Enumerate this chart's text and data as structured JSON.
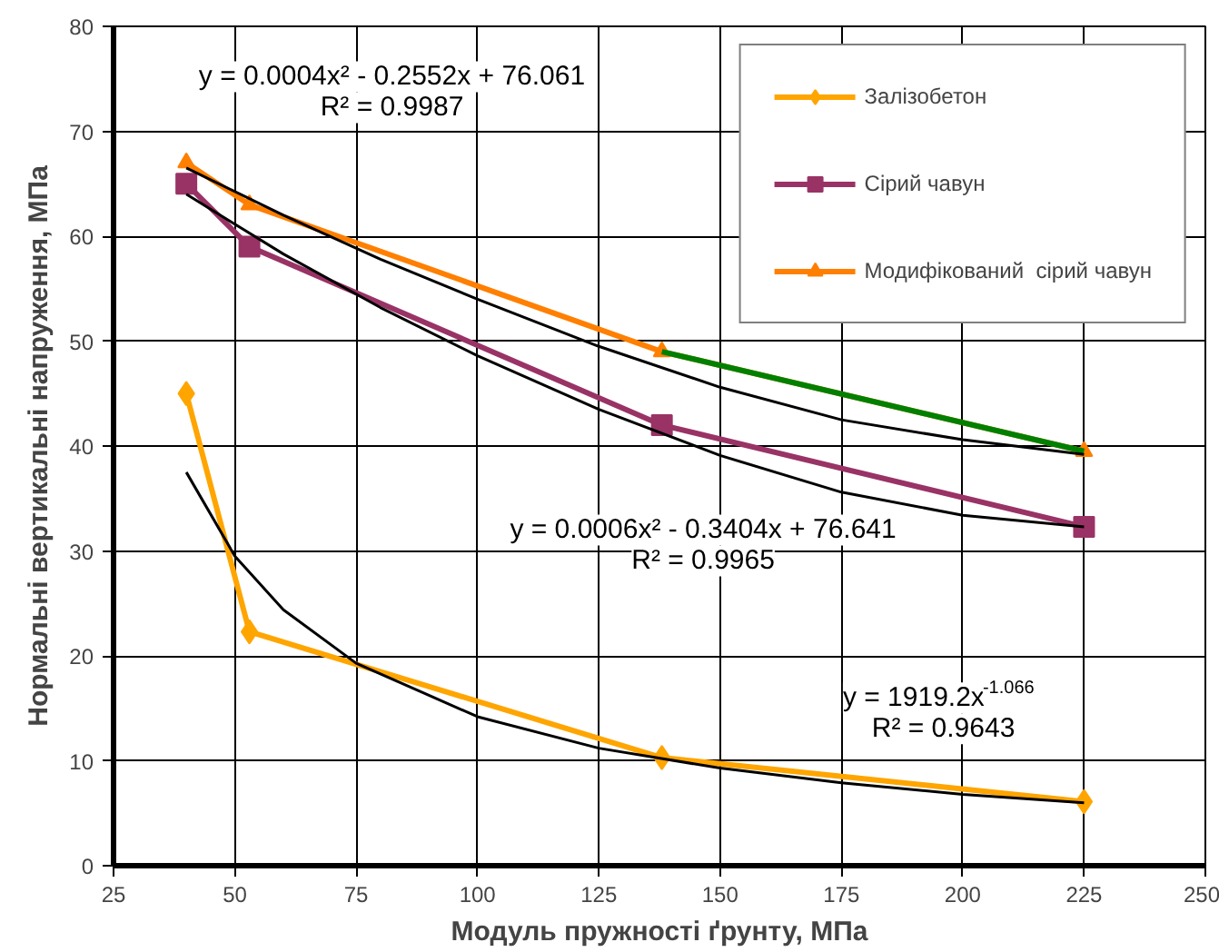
{
  "chart_data": {
    "type": "line",
    "xlabel": "Модуль пружності ґрунту, МПа",
    "ylabel": "Нормальні вертикальні напруження, МПа",
    "x": [
      40,
      53,
      138,
      225
    ],
    "series": [
      {
        "name": "Залізобетон",
        "color": "#ffa500",
        "marker": "diamond",
        "values": [
          45,
          22.3,
          10.3,
          6.1
        ]
      },
      {
        "name": "Сірий чавун",
        "color": "#993366",
        "marker": "square",
        "values": [
          65,
          59,
          42,
          32.3
        ]
      },
      {
        "name": "Модифікований  сірий чавун",
        "color": "#ff7f00",
        "marker": "triangle",
        "values": [
          67,
          63,
          49,
          39.5
        ]
      },
      {
        "type": "line",
        "color": "#008000",
        "marker": "none",
        "x": [
          138,
          225
        ],
        "values": [
          49,
          39.5
        ]
      },
      {
        "type": "line",
        "color": "#000000",
        "marker": "none",
        "x": [
          40,
          60,
          80,
          100,
          125,
          150,
          175,
          200,
          225
        ],
        "values": [
          66.5,
          62,
          57.8,
          54,
          49.5,
          45.6,
          42.5,
          40.6,
          39.2
        ]
      },
      {
        "type": "line",
        "color": "#000000",
        "marker": "none",
        "x": [
          40,
          60,
          80,
          100,
          125,
          150,
          175,
          200,
          225
        ],
        "values": [
          64,
          58.3,
          53.2,
          48.6,
          43.5,
          39.1,
          35.6,
          33.4,
          32.3
        ]
      },
      {
        "type": "line",
        "color": "#000000",
        "marker": "none",
        "x": [
          40,
          50,
          60,
          75,
          100,
          125,
          150,
          175,
          200,
          225
        ],
        "values": [
          37.5,
          29.5,
          24.4,
          19.3,
          14.2,
          11.2,
          9.3,
          7.9,
          6.8,
          6.0
        ]
      }
    ],
    "xlim": [
      25,
      250
    ],
    "xticks": [
      25,
      50,
      75,
      100,
      125,
      150,
      175,
      200,
      225,
      250
    ],
    "ylim": [
      0,
      80
    ],
    "yticks": [
      0,
      10,
      20,
      30,
      40,
      50,
      60,
      70,
      80
    ],
    "grid": true,
    "legend": "top right",
    "line_style": "solid",
    "annotations": [
      "y = 0.0004x² - 0.2552x + 76.061\nR² = 0.9987",
      "y = 0.0006x² - 0.3404x + 76.641\nR² = 0.9965",
      "y = 1919.2x$^{-1.066}$\nR² = 0.9643"
    ]
  }
}
